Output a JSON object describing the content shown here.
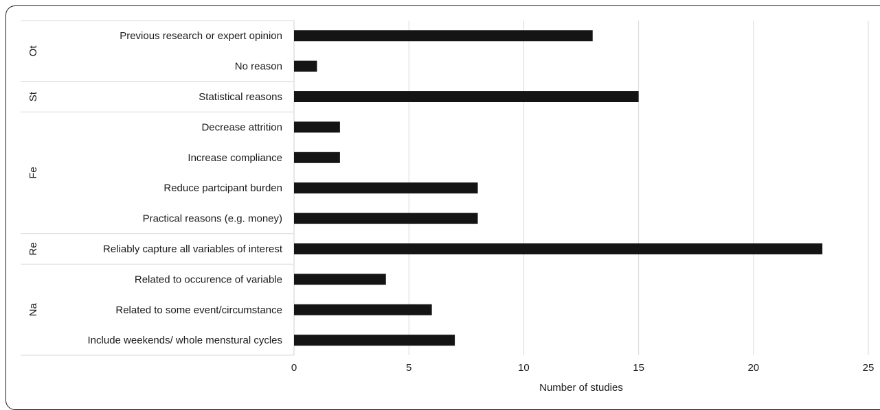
{
  "chart_data": {
    "type": "bar",
    "orientation": "horizontal",
    "xlabel": "Number of studies",
    "xlim": [
      0,
      25
    ],
    "xticks": [
      0,
      5,
      10,
      15,
      20,
      25
    ],
    "grid": "vertical",
    "groups": [
      {
        "label": "Ot",
        "categories": [
          "Previous research or expert opinion",
          "No reason"
        ],
        "values": [
          13,
          1
        ]
      },
      {
        "label": "St",
        "categories": [
          "Statistical reasons"
        ],
        "values": [
          15
        ]
      },
      {
        "label": "Fe",
        "categories": [
          "Decrease attrition",
          "Increase compliance",
          "Reduce partcipant burden",
          "Practical reasons (e.g. money)"
        ],
        "values": [
          2,
          2,
          8,
          8
        ]
      },
      {
        "label": "Re",
        "categories": [
          "Reliably capture all variables of interest"
        ],
        "values": [
          23
        ]
      },
      {
        "label": "Na",
        "categories": [
          "Related to occurence of variable",
          "Related to some event/circumstance",
          "Include weekends/ whole menstural cycles"
        ],
        "values": [
          4,
          6,
          7
        ]
      }
    ],
    "bar_color": "#141414"
  }
}
